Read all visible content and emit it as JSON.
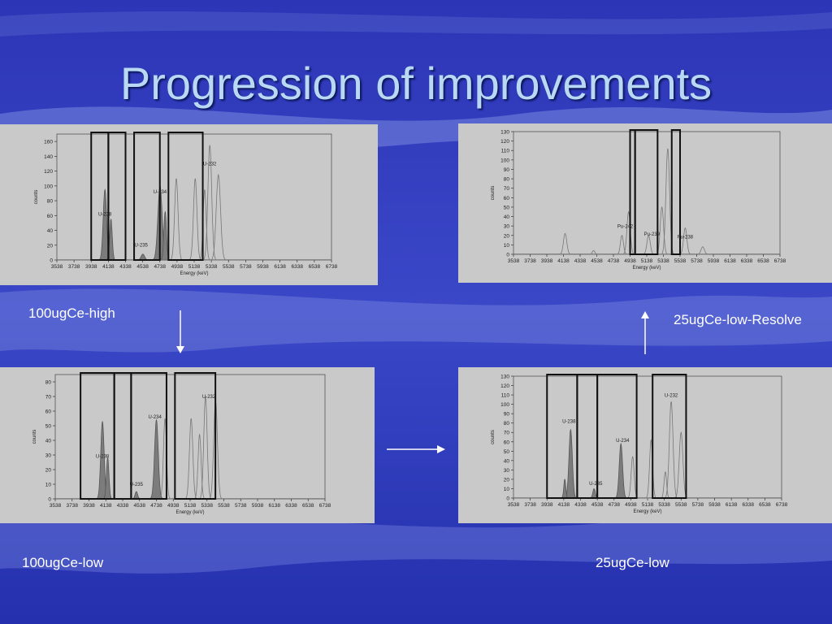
{
  "slide": {
    "title": "Progression of improvements"
  },
  "captions": {
    "top_left": "100ugCe-high",
    "top_right": "25ugCe-low-Resolve",
    "bottom_left": "100ugCe-low",
    "bottom_right": "25ugCe-low"
  },
  "colors": {
    "title": "#b9d8f4",
    "background": "#2a34b8",
    "panel": "#c9c9c9"
  },
  "chart_data": [
    {
      "id": "p1",
      "type": "area",
      "caption": "100ugCe-high",
      "xlabel": "Energy (keV)",
      "ylabel": "counts",
      "xlim": [
        3538,
        6738
      ],
      "xticks": [
        "3538",
        "3738",
        "3938",
        "4138",
        "4338",
        "4538",
        "4738",
        "4938",
        "5138",
        "5338",
        "5538",
        "5738",
        "5938",
        "6138",
        "6338",
        "6538",
        "6738"
      ],
      "ylim": [
        0,
        170
      ],
      "yticks": [
        "0",
        "20",
        "40",
        "60",
        "80",
        "100",
        "120",
        "140",
        "160"
      ],
      "roi_windows": [
        [
          3938,
          4138
        ],
        [
          4138,
          4338
        ],
        [
          4438,
          4738
        ],
        [
          4838,
          5238
        ]
      ],
      "peaks": [
        {
          "x": 4098,
          "y": 95,
          "w": 20,
          "fill": true
        },
        {
          "x": 4168,
          "y": 55,
          "w": 15,
          "fill": true
        },
        {
          "x": 4540,
          "y": 8,
          "w": 20,
          "fill": true
        },
        {
          "x": 4740,
          "y": 100,
          "w": 25,
          "fill": true
        },
        {
          "x": 4800,
          "y": 65,
          "w": 15,
          "fill": true
        },
        {
          "x": 4930,
          "y": 110,
          "w": 20,
          "fill": false
        },
        {
          "x": 5150,
          "y": 110,
          "w": 20,
          "fill": false
        },
        {
          "x": 5260,
          "y": 95,
          "w": 18,
          "fill": false
        },
        {
          "x": 5320,
          "y": 155,
          "w": 22,
          "fill": false
        },
        {
          "x": 5420,
          "y": 115,
          "w": 25,
          "fill": false
        }
      ],
      "annotations": [
        {
          "text": "U-238",
          "x": 4098,
          "y": 60
        },
        {
          "text": "U-235",
          "x": 4520,
          "y": 18
        },
        {
          "text": "U-234",
          "x": 4740,
          "y": 90
        },
        {
          "text": "U-232",
          "x": 5320,
          "y": 128
        }
      ]
    },
    {
      "id": "p2",
      "type": "area",
      "caption": "25ugCe-low-Resolve",
      "xlabel": "Energy (keV)",
      "ylabel": "counts",
      "xlim": [
        3538,
        6738
      ],
      "xticks": [
        "3538",
        "3738",
        "3938",
        "4138",
        "4338",
        "4538",
        "4738",
        "4938",
        "5138",
        "5338",
        "5538",
        "5738",
        "5938",
        "6138",
        "6338",
        "6538",
        "6738"
      ],
      "ylim": [
        0,
        130
      ],
      "yticks": [
        "0",
        "10",
        "20",
        "30",
        "40",
        "50",
        "60",
        "70",
        "80",
        "90",
        "100",
        "110",
        "120",
        "130"
      ],
      "roi_windows": [
        [
          4938,
          4998
        ],
        [
          4998,
          5268
        ],
        [
          5438,
          5538
        ]
      ],
      "peaks": [
        {
          "x": 4158,
          "y": 22,
          "w": 20,
          "fill": false
        },
        {
          "x": 4500,
          "y": 4,
          "w": 15,
          "fill": false
        },
        {
          "x": 4840,
          "y": 20,
          "w": 18,
          "fill": false
        },
        {
          "x": 4920,
          "y": 45,
          "w": 20,
          "fill": false
        },
        {
          "x": 5160,
          "y": 20,
          "w": 20,
          "fill": false
        },
        {
          "x": 5320,
          "y": 50,
          "w": 20,
          "fill": false
        },
        {
          "x": 5390,
          "y": 112,
          "w": 22,
          "fill": false
        },
        {
          "x": 5600,
          "y": 28,
          "w": 20,
          "fill": false
        },
        {
          "x": 5810,
          "y": 8,
          "w": 20,
          "fill": false
        }
      ],
      "annotations": [
        {
          "text": "Pu-242",
          "x": 4880,
          "y": 28
        },
        {
          "text": "Pu-239",
          "x": 5200,
          "y": 20
        },
        {
          "text": "Pu-238",
          "x": 5600,
          "y": 17
        }
      ]
    },
    {
      "id": "p3",
      "type": "area",
      "caption": "100ugCe-low",
      "xlabel": "Energy (keV)",
      "ylabel": "counts",
      "xlim": [
        3538,
        6738
      ],
      "xticks": [
        "3538",
        "3738",
        "3938",
        "4138",
        "4338",
        "4538",
        "4738",
        "4938",
        "5138",
        "5338",
        "5538",
        "5738",
        "5938",
        "6138",
        "6338",
        "6538",
        "6738"
      ],
      "ylim": [
        0,
        85
      ],
      "yticks": [
        "0",
        "10",
        "20",
        "30",
        "40",
        "50",
        "60",
        "70",
        "80"
      ],
      "roi_windows": [
        [
          3838,
          4238
        ],
        [
          4238,
          4438
        ],
        [
          4438,
          4858
        ],
        [
          4958,
          5438
        ]
      ],
      "peaks": [
        {
          "x": 4098,
          "y": 53,
          "w": 20,
          "fill": true
        },
        {
          "x": 4160,
          "y": 28,
          "w": 15,
          "fill": true
        },
        {
          "x": 4500,
          "y": 5,
          "w": 15,
          "fill": true
        },
        {
          "x": 4738,
          "y": 54,
          "w": 22,
          "fill": true
        },
        {
          "x": 4840,
          "y": 55,
          "w": 18,
          "fill": false
        },
        {
          "x": 5150,
          "y": 55,
          "w": 20,
          "fill": false
        },
        {
          "x": 5250,
          "y": 44,
          "w": 18,
          "fill": false
        },
        {
          "x": 5320,
          "y": 70,
          "w": 20,
          "fill": false
        },
        {
          "x": 5440,
          "y": 67,
          "w": 22,
          "fill": false
        }
      ],
      "annotations": [
        {
          "text": "U-238",
          "x": 4098,
          "y": 28
        },
        {
          "text": "U-235",
          "x": 4500,
          "y": 9
        },
        {
          "text": "U-234",
          "x": 4720,
          "y": 55
        },
        {
          "text": "U-232",
          "x": 5360,
          "y": 69
        }
      ]
    },
    {
      "id": "p4",
      "type": "area",
      "caption": "25ugCe-low",
      "xlabel": "Energy (keV)",
      "ylabel": "counts",
      "xlim": [
        3538,
        6738
      ],
      "xticks": [
        "3538",
        "3738",
        "3938",
        "4138",
        "4338",
        "4538",
        "4738",
        "4938",
        "5138",
        "5338",
        "5538",
        "5738",
        "5938",
        "6138",
        "6338",
        "6538",
        "6738"
      ],
      "ylim": [
        0,
        130
      ],
      "yticks": [
        "0",
        "10",
        "20",
        "30",
        "40",
        "50",
        "60",
        "70",
        "80",
        "90",
        "100",
        "110",
        "120",
        "130"
      ],
      "roi_windows": [
        [
          3938,
          4298
        ],
        [
          4298,
          4538
        ],
        [
          4538,
          5008
        ],
        [
          5198,
          5598
        ]
      ],
      "peaks": [
        {
          "x": 4220,
          "y": 73,
          "w": 20,
          "fill": true
        },
        {
          "x": 4150,
          "y": 20,
          "w": 12,
          "fill": true
        },
        {
          "x": 4500,
          "y": 10,
          "w": 15,
          "fill": true
        },
        {
          "x": 4820,
          "y": 58,
          "w": 20,
          "fill": true
        },
        {
          "x": 4960,
          "y": 44,
          "w": 18,
          "fill": false
        },
        {
          "x": 5180,
          "y": 62,
          "w": 18,
          "fill": false
        },
        {
          "x": 5350,
          "y": 28,
          "w": 15,
          "fill": false
        },
        {
          "x": 5420,
          "y": 103,
          "w": 22,
          "fill": false
        },
        {
          "x": 5538,
          "y": 70,
          "w": 22,
          "fill": false
        }
      ],
      "annotations": [
        {
          "text": "U-238",
          "x": 4200,
          "y": 80
        },
        {
          "text": "U-235",
          "x": 4520,
          "y": 14
        },
        {
          "text": "U-234",
          "x": 4840,
          "y": 60
        },
        {
          "text": "U-232",
          "x": 5420,
          "y": 108
        }
      ]
    }
  ]
}
